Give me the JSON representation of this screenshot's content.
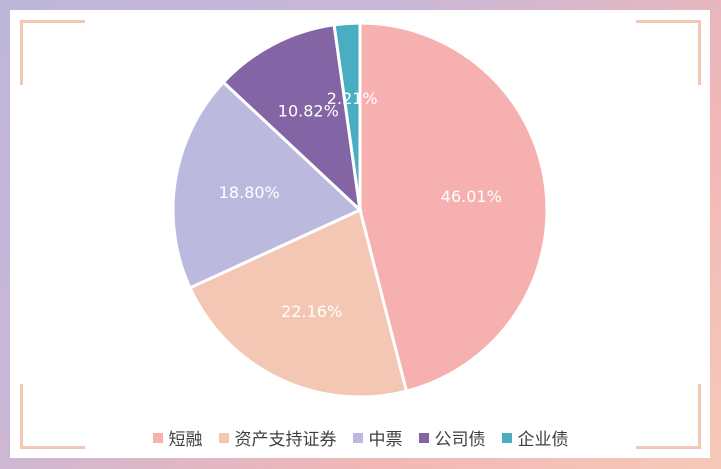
{
  "chart_data": {
    "type": "pie",
    "title": "",
    "slices": [
      {
        "label": "短融",
        "value": 46.01,
        "display": "46.01%",
        "color": "#f7b0b0"
      },
      {
        "label": "资产支持证券",
        "value": 22.16,
        "display": "22.16%",
        "color": "#f4c6b4"
      },
      {
        "label": "中票",
        "value": 18.8,
        "display": "18.80%",
        "color": "#bbbade"
      },
      {
        "label": "公司债",
        "value": 10.82,
        "display": "10.82%",
        "color": "#8365a5"
      },
      {
        "label": "企业债",
        "value": 2.21,
        "display": "2.21%",
        "color": "#4aaec3"
      }
    ],
    "start_angle": "12 o'clock",
    "direction": "clockwise",
    "legend_position": "bottom"
  }
}
